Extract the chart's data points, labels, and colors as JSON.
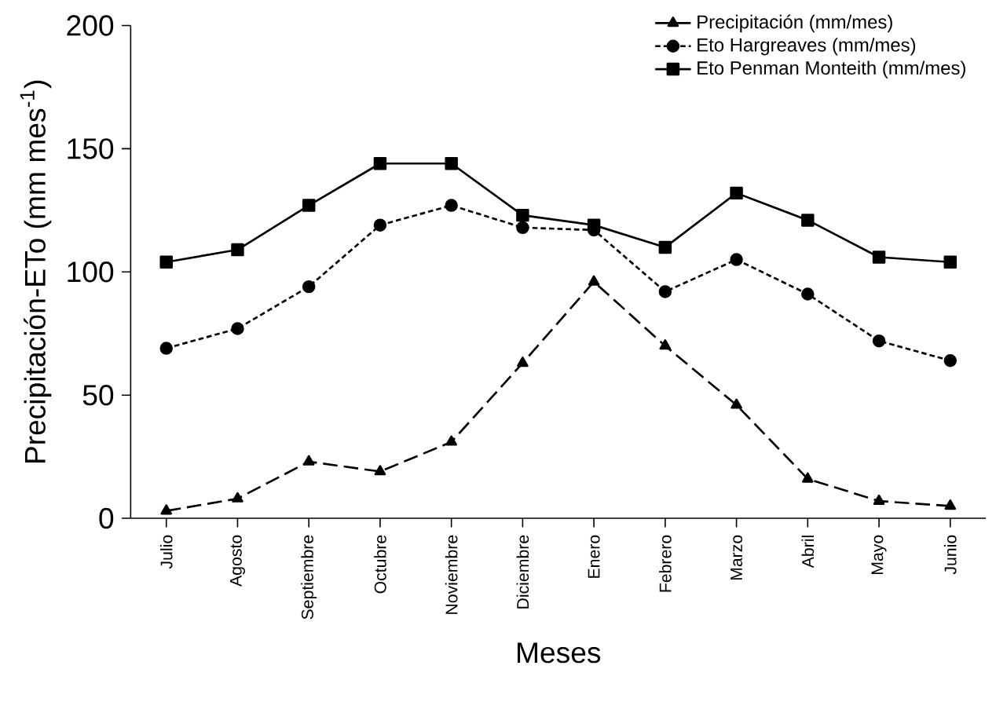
{
  "chart_data": {
    "type": "line",
    "xlabel": "Meses",
    "ylabel": "Precipitación-ETo (mm mes$^{-1}$)",
    "categories": [
      "Julio",
      "Agosto",
      "Septiembre",
      "Octubre",
      "Noviembre",
      "Diciembre",
      "Enero",
      "Febrero",
      "Marzo",
      "Abril",
      "Mayo",
      "Junio"
    ],
    "ylim": [
      0,
      200
    ],
    "yticks": [
      0,
      50,
      100,
      150,
      200
    ],
    "legend": "top right",
    "grid": false,
    "series": [
      {
        "name": "Precipitación (mm/mes)",
        "color": "#000000",
        "marker": "triangle",
        "line_style": "dashed",
        "values": [
          3,
          8,
          23,
          19,
          31,
          63,
          96,
          70,
          46,
          16,
          7,
          5
        ]
      },
      {
        "name": "Eto  Hargreaves (mm/mes)",
        "color": "#000000",
        "marker": "circle",
        "line_style": "dotted",
        "values": [
          69,
          77,
          94,
          119,
          127,
          118,
          117,
          92,
          105,
          91,
          72,
          64
        ]
      },
      {
        "name": "Eto Penman Monteith (mm/mes)",
        "color": "#000000",
        "marker": "square",
        "line_style": "solid",
        "values": [
          104,
          109,
          127,
          144,
          144,
          123,
          119,
          110,
          132,
          121,
          106,
          104
        ]
      }
    ]
  }
}
